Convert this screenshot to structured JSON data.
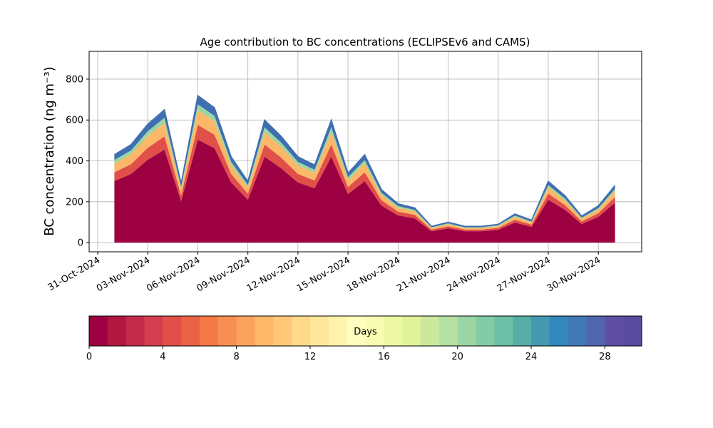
{
  "chart_data": {
    "type": "stacked_area",
    "title": "Age contribution to BC concentrations (ECLIPSEv6 and CAMS)",
    "y_label": "BC concentration (ng m⁻³)",
    "x": [
      "2024-11-01",
      "2024-11-02",
      "2024-11-03",
      "2024-11-04",
      "2024-11-05",
      "2024-11-06",
      "2024-11-07",
      "2024-11-08",
      "2024-11-09",
      "2024-11-10",
      "2024-11-11",
      "2024-11-12",
      "2024-11-13",
      "2024-11-14",
      "2024-11-15",
      "2024-11-16",
      "2024-11-17",
      "2024-11-18",
      "2024-11-19",
      "2024-11-20",
      "2024-11-21",
      "2024-11-22",
      "2024-11-23",
      "2024-11-24",
      "2024-11-25",
      "2024-11-26",
      "2024-11-27",
      "2024-11-28",
      "2024-11-29",
      "2024-11-30",
      "2024-12-01"
    ],
    "series": [
      {
        "color": "#9e0142",
        "values": [
          301,
          336,
          406,
          455,
          203,
          504,
          462,
          294,
          210,
          420,
          364,
          294,
          266,
          420,
          238,
          301,
          182,
          133,
          119,
          56,
          70,
          56,
          56,
          63,
          98,
          77,
          210,
          161,
          91,
          126,
          196
        ]
      },
      {
        "color": "#e05049",
        "values": [
          43,
          48,
          58,
          65,
          29,
          72,
          66,
          42,
          30,
          60,
          52,
          42,
          38,
          60,
          34,
          43,
          26,
          19,
          17,
          8,
          10,
          8,
          8,
          9,
          14,
          11,
          30,
          23,
          13,
          18,
          28
        ]
      },
      {
        "color": "#fdb768",
        "values": [
          43,
          48,
          58,
          65,
          29,
          72,
          66,
          42,
          30,
          60,
          52,
          42,
          38,
          60,
          34,
          43,
          26,
          19,
          17,
          8,
          10,
          8,
          8,
          9,
          14,
          11,
          30,
          23,
          13,
          18,
          28
        ]
      },
      {
        "color": "#9cd5a4",
        "values": [
          17,
          19,
          23,
          26,
          12,
          29,
          26,
          17,
          12,
          24,
          21,
          17,
          15,
          24,
          14,
          17,
          10,
          8,
          7,
          3,
          4,
          3,
          3,
          4,
          6,
          4,
          12,
          9,
          5,
          7,
          11
        ]
      },
      {
        "color": "#3f6fb0",
        "values": [
          26,
          29,
          35,
          39,
          17,
          43,
          40,
          25,
          18,
          36,
          31,
          25,
          23,
          36,
          20,
          26,
          16,
          11,
          10,
          5,
          6,
          5,
          5,
          5,
          8,
          7,
          18,
          14,
          8,
          11,
          17
        ]
      }
    ],
    "xlim": [
      "2024-10-31",
      "2024-12-02"
    ],
    "xticks": [
      {
        "value": "2024-10-31",
        "label": "31-Oct-2024"
      },
      {
        "value": "2024-11-03",
        "label": "03-Nov-2024"
      },
      {
        "value": "2024-11-06",
        "label": "06-Nov-2024"
      },
      {
        "value": "2024-11-09",
        "label": "09-Nov-2024"
      },
      {
        "value": "2024-11-12",
        "label": "12-Nov-2024"
      },
      {
        "value": "2024-11-15",
        "label": "15-Nov-2024"
      },
      {
        "value": "2024-11-18",
        "label": "18-Nov-2024"
      },
      {
        "value": "2024-11-21",
        "label": "21-Nov-2024"
      },
      {
        "value": "2024-11-24",
        "label": "24-Nov-2024"
      },
      {
        "value": "2024-11-27",
        "label": "27-Nov-2024"
      },
      {
        "value": "2024-11-30",
        "label": "30-Nov-2024"
      }
    ],
    "ylim": [
      -45,
      936
    ],
    "yticks": [
      0,
      200,
      400,
      600,
      800
    ],
    "grid": true,
    "colorbar": {
      "label": "Days",
      "lim": [
        0,
        30
      ],
      "ticks": [
        0,
        4,
        8,
        12,
        16,
        20,
        24,
        28
      ],
      "colors": [
        "#9e0142",
        "#b1173f",
        "#c42b4a",
        "#d53e4f",
        "#e05049",
        "#ea6244",
        "#f47a48",
        "#f88f52",
        "#fba35c",
        "#fdb768",
        "#fec878",
        "#fed98a",
        "#fee69a",
        "#fff3ac",
        "#fffebe",
        "#f7fcb2",
        "#edf8a3",
        "#e0f29a",
        "#cbe99d",
        "#b4e0a2",
        "#9cd5a4",
        "#83cba5",
        "#6cc0a5",
        "#57ada8",
        "#4499b1",
        "#3288bd",
        "#3f79b6",
        "#4f66ae",
        "#5e4fa2",
        "#594ba0"
      ]
    }
  }
}
